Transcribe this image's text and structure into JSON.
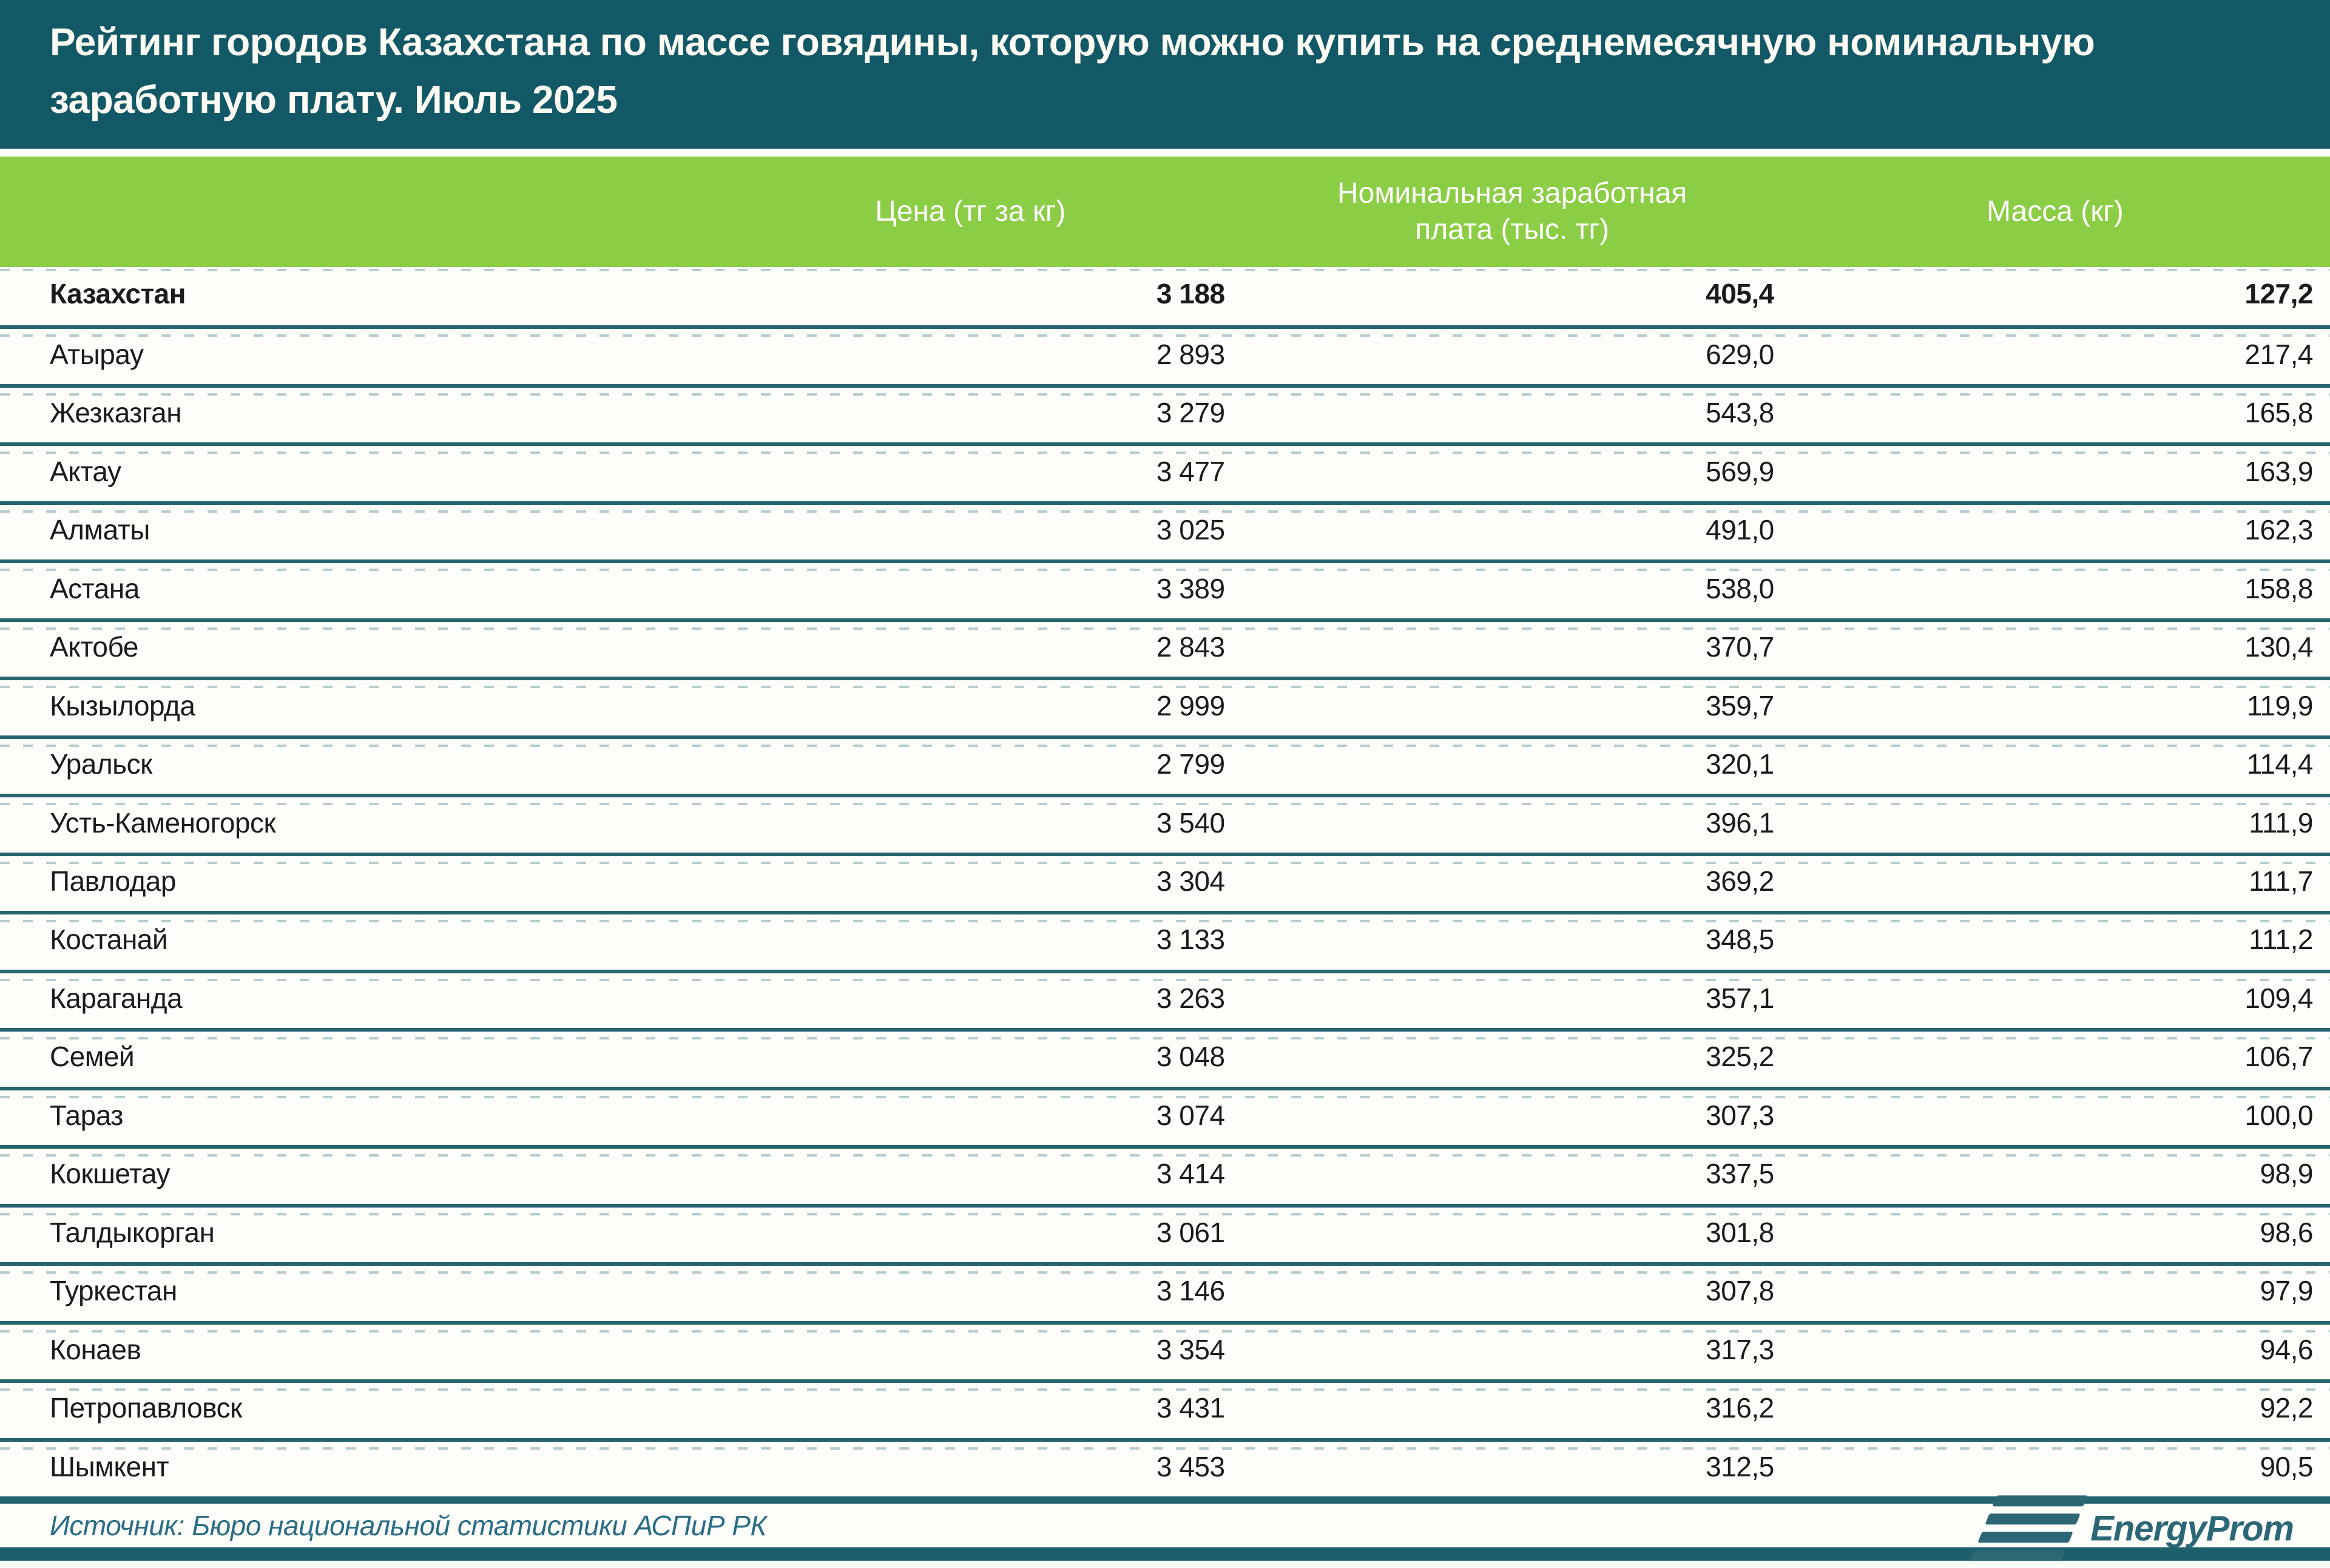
{
  "title": {
    "line1": "Рейтинг городов Казахстана по массе говядины, которую можно купить на среднемесячную номинальную",
    "line2": "заработную плату. Июль 2025"
  },
  "chart_data": {
    "type": "table",
    "title": "Рейтинг городов Казахстана по массе говядины, которую можно купить на среднемесячную номинальную заработную плату. Июль 2025",
    "header": {
      "name": "",
      "price": "Цена (тг за кг)",
      "wage_line1": "Номинальная заработная",
      "wage_line2": "плата (тыс. тг)",
      "mass": "Масса (кг)"
    },
    "rows": [
      {
        "name": "Казахстан",
        "price": "3 188",
        "wage": "405,4",
        "mass": "127,2",
        "bold": true
      },
      {
        "name": "Атырау",
        "price": "2 893",
        "wage": "629,0",
        "mass": "217,4",
        "bold": false
      },
      {
        "name": "Жезказган",
        "price": "3 279",
        "wage": "543,8",
        "mass": "165,8",
        "bold": false
      },
      {
        "name": "Актау",
        "price": "3 477",
        "wage": "569,9",
        "mass": "163,9",
        "bold": false
      },
      {
        "name": "Алматы",
        "price": "3 025",
        "wage": "491,0",
        "mass": "162,3",
        "bold": false
      },
      {
        "name": "Астана",
        "price": "3 389",
        "wage": "538,0",
        "mass": "158,8",
        "bold": false
      },
      {
        "name": "Актобе",
        "price": "2 843",
        "wage": "370,7",
        "mass": "130,4",
        "bold": false
      },
      {
        "name": "Кызылорда",
        "price": "2 999",
        "wage": "359,7",
        "mass": "119,9",
        "bold": false
      },
      {
        "name": "Уральск",
        "price": "2 799",
        "wage": "320,1",
        "mass": "114,4",
        "bold": false
      },
      {
        "name": "Усть-Каменогорск",
        "price": "3 540",
        "wage": "396,1",
        "mass": "111,9",
        "bold": false
      },
      {
        "name": "Павлодар",
        "price": "3 304",
        "wage": "369,2",
        "mass": "111,7",
        "bold": false
      },
      {
        "name": "Костанай",
        "price": "3 133",
        "wage": "348,5",
        "mass": "111,2",
        "bold": false
      },
      {
        "name": "Караганда",
        "price": "3 263",
        "wage": "357,1",
        "mass": "109,4",
        "bold": false
      },
      {
        "name": "Семей",
        "price": "3 048",
        "wage": "325,2",
        "mass": "106,7",
        "bold": false
      },
      {
        "name": "Тараз",
        "price": "3 074",
        "wage": "307,3",
        "mass": "100,0",
        "bold": false
      },
      {
        "name": "Кокшетау",
        "price": "3 414",
        "wage": "337,5",
        "mass": "98,9",
        "bold": false
      },
      {
        "name": "Талдыкорган",
        "price": "3 061",
        "wage": "301,8",
        "mass": "98,6",
        "bold": false
      },
      {
        "name": "Туркестан",
        "price": "3 146",
        "wage": "307,8",
        "mass": "97,9",
        "bold": false
      },
      {
        "name": "Конаев",
        "price": "3 354",
        "wage": "317,3",
        "mass": "94,6",
        "bold": false
      },
      {
        "name": "Петропавловск",
        "price": "3 431",
        "wage": "316,2",
        "mass": "92,2",
        "bold": false
      },
      {
        "name": "Шымкент",
        "price": "3 453",
        "wage": "312,5",
        "mass": "90,5",
        "bold": false
      }
    ]
  },
  "footer": {
    "source": "Источник: Бюро национальной статистики АСПиР РК",
    "logo_word1": "Energy",
    "logo_word2": "Prom"
  },
  "colors": {
    "title_bg": "#135866",
    "header_bg": "#8ccd46",
    "separator": "#26656f",
    "source_text": "#2b6c85",
    "logo": "#2c6776",
    "bottom_bar": "#1e5f6d"
  }
}
